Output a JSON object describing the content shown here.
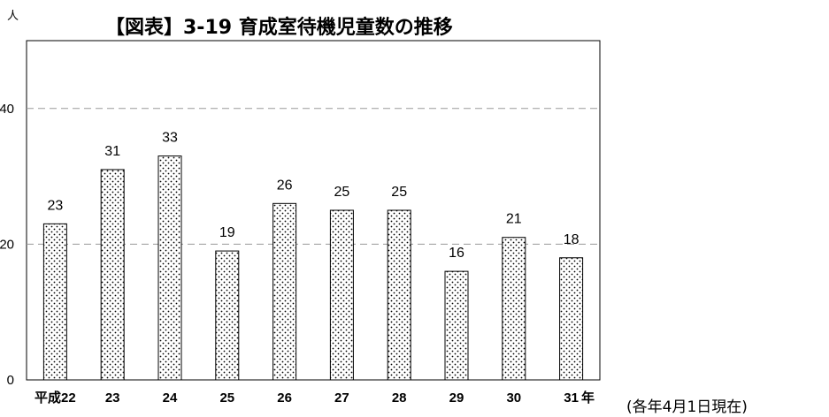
{
  "chart_data": {
    "type": "bar",
    "title": "【図表】3-19 育成室待機児童数の推移",
    "ylabel": "人",
    "xlabel": "年",
    "categories": [
      "平成22",
      "23",
      "24",
      "25",
      "26",
      "27",
      "28",
      "29",
      "30",
      "31"
    ],
    "values": [
      23,
      31,
      33,
      19,
      26,
      25,
      25,
      16,
      21,
      18
    ],
    "ylim": [
      0,
      50
    ],
    "yticks": [
      "0",
      "20",
      "40"
    ],
    "grid": true,
    "note": "(各年4月1日現在)",
    "bar_fill": "dotted-pattern"
  }
}
